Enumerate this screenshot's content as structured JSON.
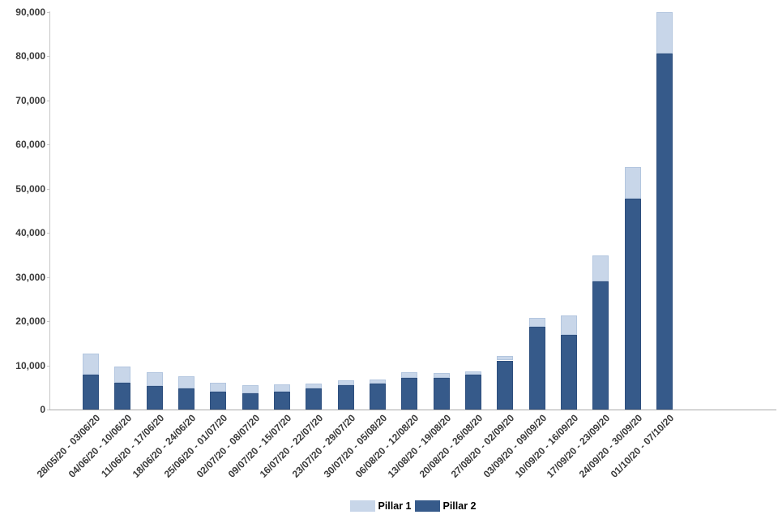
{
  "chart_data": {
    "type": "bar",
    "stacked": true,
    "title": "",
    "xlabel": "",
    "ylabel": "",
    "grid": false,
    "legend_position": "bottom-center",
    "ylim": [
      0,
      90000
    ],
    "y_ticks": [
      0,
      10000,
      20000,
      30000,
      40000,
      50000,
      60000,
      70000,
      80000,
      90000
    ],
    "categories": [
      "28/05/20 - 03/06/20",
      "04/06/20 - 10/06/20",
      "11/06/20 - 17/06/20",
      "18/06/20 - 24/06/20",
      "25/06/20 - 01/07/20",
      "02/07/20 - 08/07/20",
      "09/07/20 - 15/07/20",
      "16/07/20 - 22/07/20",
      "23/07/20 - 29/07/20",
      "30/07/20 - 05/08/20",
      "06/08/20 - 12/08/20",
      "13/08/20 - 19/08/20",
      "20/08/20 - 26/08/20",
      "27/08/20 - 02/09/20",
      "03/09/20 - 09/09/20",
      "10/09/20 - 16/09/20",
      "17/09/20 - 23/09/20",
      "24/09/20 - 30/09/20",
      "01/10/20 - 07/10/20"
    ],
    "series": [
      {
        "name": "Pillar 1",
        "color": "#c8d6e9",
        "border_color": "#b3c6df",
        "values": [
          4700,
          3700,
          3100,
          2800,
          2000,
          1800,
          1600,
          1200,
          1100,
          1000,
          1250,
          1050,
          800,
          950,
          2000,
          4400,
          6000,
          7200,
          9400
        ]
      },
      {
        "name": "Pillar 2",
        "color": "#365a8a",
        "border_color": "#2e4f7e",
        "values": [
          7900,
          6000,
          5400,
          4800,
          4000,
          3700,
          4000,
          4700,
          5500,
          5800,
          7150,
          7200,
          7850,
          11100,
          18700,
          16800,
          28900,
          47700,
          80500
        ]
      }
    ],
    "stack_bottom_to_top": [
      "Pillar 2",
      "Pillar 1"
    ],
    "totals": [
      12600,
      9700,
      8500,
      7600,
      6000,
      5500,
      5600,
      5900,
      6600,
      6800,
      8400,
      8250,
      8650,
      12050,
      20700,
      21200,
      34900,
      54900,
      89900
    ]
  },
  "colors": {
    "background": "#ffffff",
    "y_axis_line": "#c6c6c6",
    "x_axis_line": "#ababab",
    "tick_label_text": "#3a3a3a",
    "legend_text": "#000000"
  }
}
